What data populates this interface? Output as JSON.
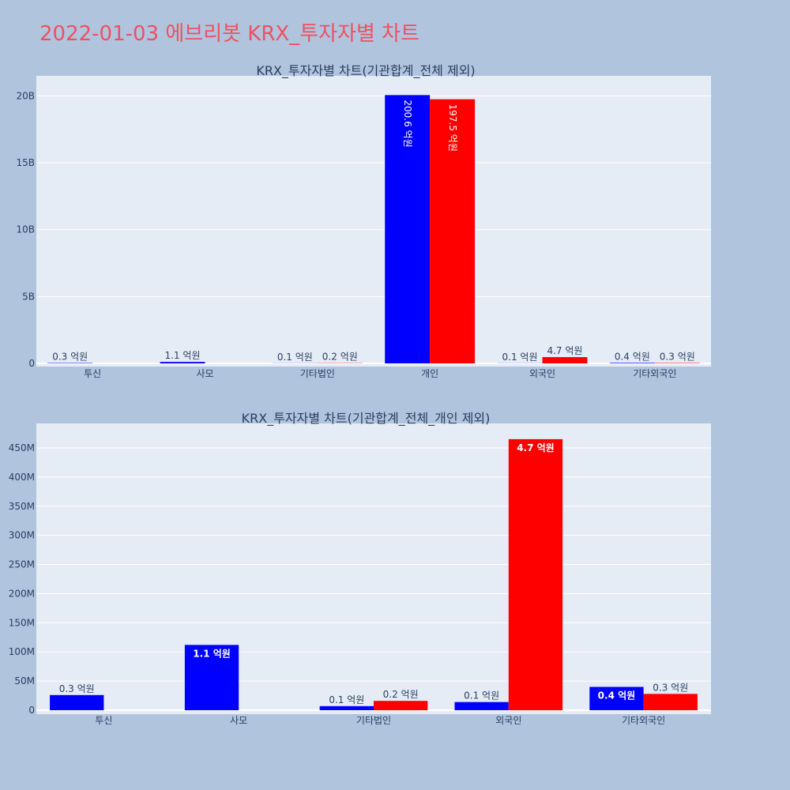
{
  "page": {
    "title": "2022-01-03 에브리봇 KRX_투자자별 차트"
  },
  "colors": {
    "background": "#b0c4de",
    "plot_bg": "#e5ecf6",
    "series_a": "#0000ff",
    "series_b": "#ff0000",
    "title": "#ef5060",
    "text": "#2a3f5f"
  },
  "chart_data": [
    {
      "type": "bar",
      "title": "KRX_투자자별 차트(기관합계_전체 제외)",
      "categories": [
        "투신",
        "사모",
        "기타법인",
        "개인",
        "외국인",
        "기타외국인"
      ],
      "y_tick_values": [
        0,
        5000000000,
        10000000000,
        15000000000,
        20000000000
      ],
      "y_tick_labels": [
        "0",
        "5B",
        "10B",
        "15B",
        "20B"
      ],
      "ylim": [
        0,
        21500000000
      ],
      "grid": true,
      "legend": "none",
      "series": [
        {
          "color": "#0000ff",
          "values": [
            30000000,
            110000000,
            10000000,
            20060000000,
            10000000,
            40000000
          ],
          "labels": [
            "0.3 억원",
            "1.1 억원",
            "0.1 억원",
            "200.6 억원",
            "0.1 억원",
            "0.4 억원"
          ]
        },
        {
          "color": "#ff0000",
          "values": [
            0,
            0,
            20000000,
            19750000000,
            470000000,
            30000000
          ],
          "labels": [
            "",
            "",
            "0.2 억원",
            "197.5 억원",
            "4.7 억원",
            "0.3 억원"
          ]
        }
      ]
    },
    {
      "type": "bar",
      "title": "KRX_투자자별 차트(기관합계_전체_개인 제외)",
      "categories": [
        "투신",
        "사모",
        "기타법인",
        "외국인",
        "기타외국인"
      ],
      "y_tick_values": [
        0,
        50000000,
        100000000,
        150000000,
        200000000,
        250000000,
        300000000,
        350000000,
        400000000,
        450000000
      ],
      "y_tick_labels": [
        "0",
        "50M",
        "100M",
        "150M",
        "200M",
        "250M",
        "300M",
        "350M",
        "400M",
        "450M"
      ],
      "ylim": [
        0,
        492000000
      ],
      "grid": true,
      "legend": "none",
      "series": [
        {
          "color": "#0000ff",
          "values": [
            26000000,
            112000000,
            7000000,
            14000000,
            40000000
          ],
          "labels": [
            "0.3 억원",
            "1.1 억원",
            "0.1 억원",
            "0.1 억원",
            "0.4 억원"
          ]
        },
        {
          "color": "#ff0000",
          "values": [
            0,
            0,
            16000000,
            465000000,
            28000000
          ],
          "labels": [
            "",
            "",
            "0.2 억원",
            "4.7 억원",
            "0.3 억원"
          ]
        }
      ]
    }
  ]
}
